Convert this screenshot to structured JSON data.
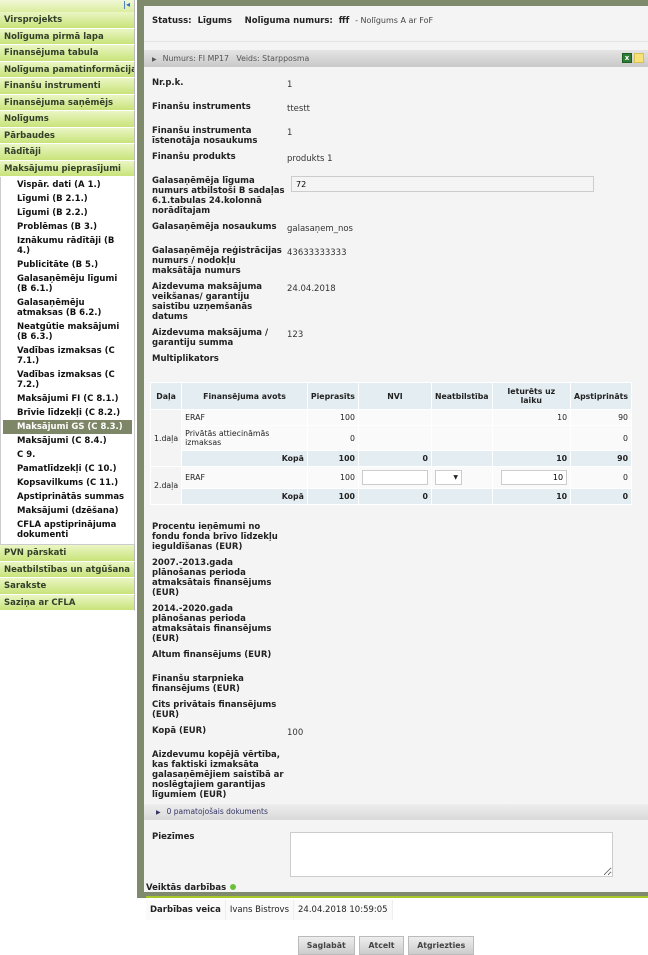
{
  "sidebar": {
    "collapse_icon": "collapse-left-icon",
    "items_top": [
      "Virsprojekts",
      "Nolīguma pirmā lapa",
      "Finansējuma tabula",
      "Nolīguma pamatinformācija",
      "Finanšu instrumenti",
      "Finansējuma saņēmējs",
      "Nolīgums",
      "Pārbaudes",
      "Rādītāji",
      "Maksājumu pieprasījumi"
    ],
    "sub_items": [
      "Vispār. dati (A 1.)",
      "Līgumi (B 2.1.)",
      "Līgumi (B 2.2.)",
      "Problēmas (B 3.)",
      "Iznākumu rādītāji (B 4.)",
      "Publicitāte (B 5.)",
      "Galasaņēmēju līgumi (B 6.1.)",
      "Galasaņēmēju atmaksas (B 6.2.)",
      "Neatgūtie maksājumi (B 6.3.)",
      "Vadības izmaksas (C 7.1.)",
      "Vadības izmaksas (C 7.2.)",
      "Maksājumi FI (C 8.1.)",
      "Brīvie līdzekļi (C 8.2.)",
      "Maksājumi GS (C 8.3.)",
      "Maksājumi (C 8.4.)",
      "C 9.",
      "Pamatlīdzekļi (C 10.)",
      "Kopsavilkums (C 11.)",
      "Apstiprinātās summas",
      "Maksājumi (dzēšana)",
      "CFLA apstiprinājuma dokumenti"
    ],
    "active_sub": "Maksājumi GS (C 8.3.)",
    "items_bottom": [
      "PVN pārskati",
      "Neatbilstības un atgūšana",
      "Sarakste",
      "Saziņa ar CFLA"
    ]
  },
  "header": {
    "status_label": "Statuss:",
    "status_value": "Līgums",
    "contract_label": "Nolīguma numurs:",
    "contract_value": "fff",
    "contract_desc": "- Nolīgums A ar FoF"
  },
  "section": {
    "title": "Numurs: FI MP17   Veids: Starpposma",
    "icons": [
      "excel-icon",
      "mail-icon"
    ]
  },
  "fields": [
    {
      "label": "Nr.p.k.",
      "value": "1"
    },
    {
      "label": "Finanšu instruments",
      "value": "ttestt"
    },
    {
      "label": "Finanšu instrumenta īstenotāja nosaukums",
      "value": "1"
    },
    {
      "label": "Finanšu produkts",
      "value": "produkts 1"
    },
    {
      "label": "Galasaņēmēja līguma numurs atbilstoši B sadaļas 6.1.tabulas 24.kolonnā norādītajam",
      "input": "72"
    },
    {
      "label": "Galasaņēmēja nosaukums",
      "value": "galasaņem_nos"
    },
    {
      "label": "Galasaņēmēja reģistrācijas numurs / nodokļu maksātāja numurs",
      "value": "43633333333"
    },
    {
      "label": "Aizdevuma maksājuma veikšanas/ garantiju saistību uzņemšanās datums",
      "value": "24.04.2018"
    },
    {
      "label": "Aizdevuma maksājuma / garantiju summa",
      "value": "123"
    },
    {
      "label": "Multiplikators",
      "value": ""
    }
  ],
  "table": {
    "headers": [
      "Daļa",
      "Finansējuma avots",
      "Pieprasīts",
      "NVI",
      "Neatbilstība",
      "Ieturēts uz laiku",
      "Apstiprināts"
    ],
    "part1": {
      "label": "1.daļa",
      "rows": [
        [
          "ERAF",
          "100",
          "",
          "",
          "10",
          "90"
        ],
        [
          "Privātās attiecināmās izmaksas",
          "0",
          "",
          "",
          "",
          "0"
        ]
      ],
      "total": [
        "Kopā",
        "100",
        "0",
        "",
        "10",
        "90"
      ]
    },
    "part2": {
      "label": "2.daļa",
      "row": {
        "source": "ERAF",
        "requested": "100",
        "nvi": "",
        "withheld": "10",
        "approved": "0"
      },
      "total": [
        "Kopā",
        "100",
        "0",
        "",
        "10",
        "0"
      ]
    }
  },
  "fields2": [
    {
      "label": "Procentu ieņēmumi no fondu fonda brīvo līdzekļu ieguldīšanas (EUR)",
      "value": ""
    },
    {
      "label": "2007.-2013.gada plānošanas perioda atmaksātais finansējums (EUR)",
      "value": ""
    },
    {
      "label": "2014.-2020.gada plānošanas perioda atmaksātais finansējums (EUR)",
      "value": ""
    },
    {
      "label": "Altum finansējums (EUR)",
      "value": ""
    },
    {
      "label": "Finanšu starpnieka finansējums (EUR)",
      "value": ""
    },
    {
      "label": "Cits privātais finansējums (EUR)",
      "value": ""
    },
    {
      "label": "Kopā (EUR)",
      "value": "100"
    },
    {
      "label": "Aizdevumu kopējā vērtība, kas faktiski izmaksāta galasaņēmējiem saistībā ar noslēgtajiem garantijas līgumiem (EUR)",
      "value": ""
    }
  ],
  "docs": "0 pamatojošais dokuments",
  "notes": {
    "label": "Piezīmes",
    "value": ""
  },
  "actions": {
    "title": "Veiktās darbības",
    "by_label": "Darbības veica",
    "user": "Ivans Bistrovs",
    "datetime": "24.04.2018 10:59:05"
  },
  "buttons": {
    "save": "Saglabāt",
    "cancel": "Atcelt",
    "back": "Atgriezties"
  }
}
